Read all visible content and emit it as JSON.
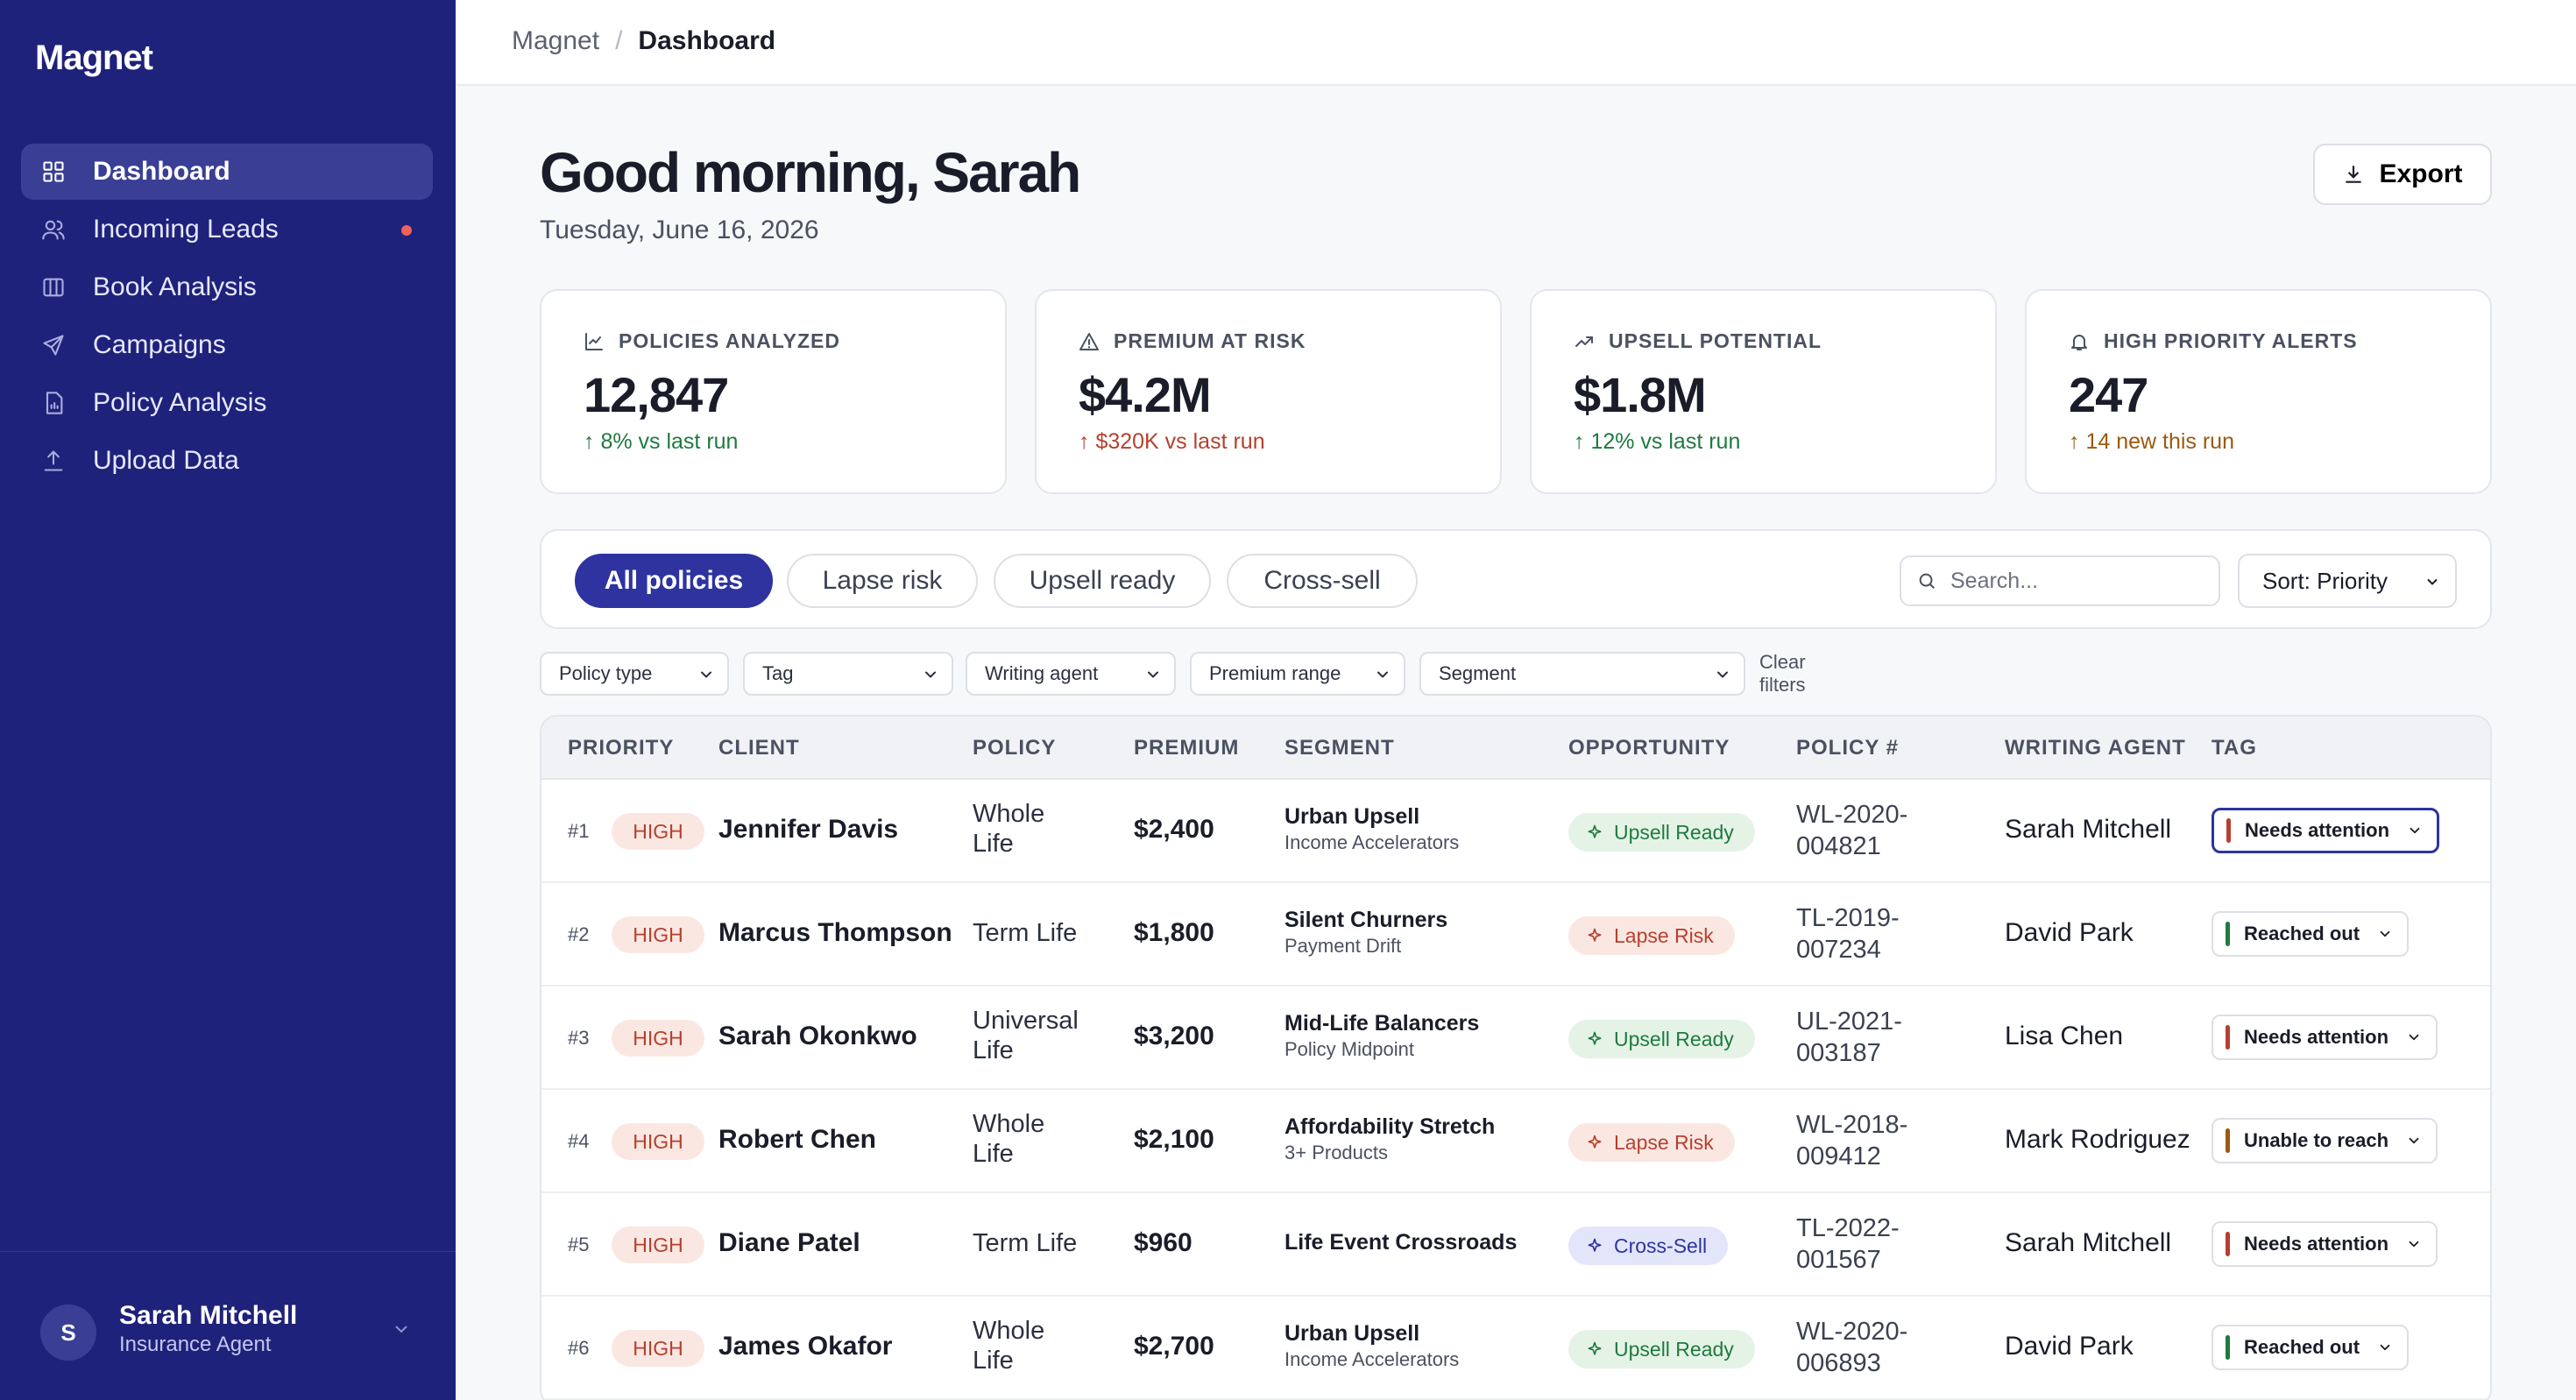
{
  "app": {
    "brand": "Magnet"
  },
  "sidebar": {
    "items": [
      {
        "label": "Dashboard",
        "icon": "grid-icon",
        "active": true
      },
      {
        "label": "Incoming Leads",
        "icon": "users-icon",
        "badge_dot": true
      },
      {
        "label": "Book Analysis",
        "icon": "columns-icon"
      },
      {
        "label": "Campaigns",
        "icon": "send-icon"
      },
      {
        "label": "Policy Analysis",
        "icon": "file-chart-icon"
      },
      {
        "label": "Upload Data",
        "icon": "upload-icon"
      }
    ],
    "user": {
      "initial": "S",
      "name": "Sarah Mitchell",
      "role": "Insurance Agent"
    }
  },
  "breadcrumb": {
    "root": "Magnet",
    "sep": "/",
    "current": "Dashboard"
  },
  "header": {
    "greeting": "Good morning, Sarah",
    "date": "Tuesday, June 16, 2026",
    "export_label": "Export"
  },
  "cards": [
    {
      "label": "POLICIES ANALYZED",
      "value": "12,847",
      "delta": "↑ 8% vs last run",
      "tone": "#1f7a3f",
      "icon": "chart-icon"
    },
    {
      "label": "PREMIUM AT RISK",
      "value": "$4.2M",
      "delta": "↑ $320K vs last run",
      "tone": "#b6402e",
      "icon": "warning-icon"
    },
    {
      "label": "UPSELL POTENTIAL",
      "value": "$1.8M",
      "delta": "↑ 12% vs last run",
      "tone": "#1f7a3f",
      "icon": "trend-up-icon"
    },
    {
      "label": "HIGH PRIORITY ALERTS",
      "value": "247",
      "delta": "↑ 14 new this run",
      "tone": "#9a5a10",
      "icon": "bell-icon"
    }
  ],
  "tabs": [
    {
      "label": "All policies",
      "active": true
    },
    {
      "label": "Lapse risk"
    },
    {
      "label": "Upsell ready"
    },
    {
      "label": "Cross-sell"
    }
  ],
  "search": {
    "placeholder": "Search..."
  },
  "sort": {
    "value": "Sort: Priority"
  },
  "filters": [
    "Policy type",
    "Tag",
    "Writing agent",
    "Premium range",
    "Segment"
  ],
  "clear_filters": "Clear filters",
  "table": {
    "headers": [
      "PRIORITY",
      "CLIENT",
      "POLICY",
      "PREMIUM",
      "SEGMENT",
      "OPPORTUNITY",
      "POLICY #",
      "WRITING AGENT",
      "TAG"
    ],
    "rows": [
      {
        "rank": "#1",
        "priority": "HIGH",
        "client": "Jennifer Davis",
        "policy": [
          "Whole",
          "Life"
        ],
        "premium": "$2,400",
        "segment": "Urban Upsell",
        "segment_sub": "Income Accelerators",
        "opportunity": "Upsell Ready",
        "opp_type": "upsell",
        "policy_no": [
          "WL-2020-",
          "004821"
        ],
        "agent": "Sarah Mitchell",
        "tag": "Needs attention",
        "tag_color": "#b6402e",
        "tag_focus": true
      },
      {
        "rank": "#2",
        "priority": "HIGH",
        "client": "Marcus Thompson",
        "policy": [
          "Term Life"
        ],
        "premium": "$1,800",
        "segment": "Silent Churners",
        "segment_sub": "Payment Drift",
        "opportunity": "Lapse Risk",
        "opp_type": "lapse",
        "policy_no": [
          "TL-2019-",
          "007234"
        ],
        "agent": "David Park",
        "tag": "Reached out",
        "tag_color": "#1f7a3f"
      },
      {
        "rank": "#3",
        "priority": "HIGH",
        "client": "Sarah Okonkwo",
        "policy": [
          "Universal",
          "Life"
        ],
        "premium": "$3,200",
        "segment": "Mid-Life Balancers",
        "segment_sub": "Policy Midpoint",
        "opportunity": "Upsell Ready",
        "opp_type": "upsell",
        "policy_no": [
          "UL-2021-",
          "003187"
        ],
        "agent": "Lisa Chen",
        "tag": "Needs attention",
        "tag_color": "#b6402e"
      },
      {
        "rank": "#4",
        "priority": "HIGH",
        "client": "Robert Chen",
        "policy": [
          "Whole",
          "Life"
        ],
        "premium": "$2,100",
        "segment": "Affordability Stretch",
        "segment_sub": "3+ Products",
        "opportunity": "Lapse Risk",
        "opp_type": "lapse",
        "policy_no": [
          "WL-2018-",
          "009412"
        ],
        "agent": "Mark Rodriguez",
        "tag": "Unable to reach",
        "tag_color": "#9a5a10"
      },
      {
        "rank": "#5",
        "priority": "HIGH",
        "client": "Diane Patel",
        "policy": [
          "Term Life"
        ],
        "premium": "$960",
        "segment": "Life Event Crossroads",
        "segment_sub": "",
        "opportunity": "Cross-Sell",
        "opp_type": "cross",
        "policy_no": [
          "TL-2022-",
          "001567"
        ],
        "agent": "Sarah Mitchell",
        "tag": "Needs attention",
        "tag_color": "#b6402e"
      },
      {
        "rank": "#6",
        "priority": "HIGH",
        "client": "James Okafor",
        "policy": [
          "Whole",
          "Life"
        ],
        "premium": "$2,700",
        "segment": "Urban Upsell",
        "segment_sub": "Income Accelerators",
        "opportunity": "Upsell Ready",
        "opp_type": "upsell",
        "policy_no": [
          "WL-2020-",
          "006893"
        ],
        "agent": "David Park",
        "tag": "Reached out",
        "tag_color": "#1f7a3f"
      }
    ]
  }
}
